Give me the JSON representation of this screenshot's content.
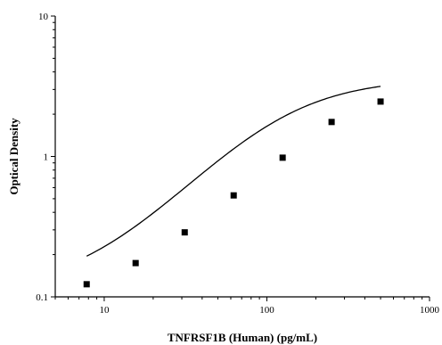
{
  "chart_data": {
    "type": "scatter",
    "xlabel": "TNFRSF1B (Human) (pg/mL)",
    "ylabel": "Optical Density",
    "xscale": "log",
    "yscale": "log",
    "xlim": [
      5,
      1000
    ],
    "ylim": [
      0.1,
      10
    ],
    "xticks": [
      10,
      100,
      1000
    ],
    "xtick_labels": [
      "10",
      "100",
      "1000"
    ],
    "yticks": [
      0.1,
      1,
      10
    ],
    "ytick_labels": [
      "0.1",
      "1",
      "10"
    ],
    "grid": false,
    "legend": false,
    "points": {
      "x": [
        7.8,
        15.6,
        31.25,
        62.5,
        125,
        250,
        500
      ],
      "y": [
        0.123,
        0.174,
        0.288,
        0.528,
        0.98,
        1.76,
        2.46
      ]
    },
    "fit_curve": {
      "type": "4PL",
      "a": 0.11,
      "d": 3.6,
      "c": 120,
      "b": 1.35,
      "x_range": [
        7.8,
        500
      ]
    },
    "colors": {
      "points": "#000000",
      "curve": "#000000",
      "axes": "#000000"
    }
  }
}
